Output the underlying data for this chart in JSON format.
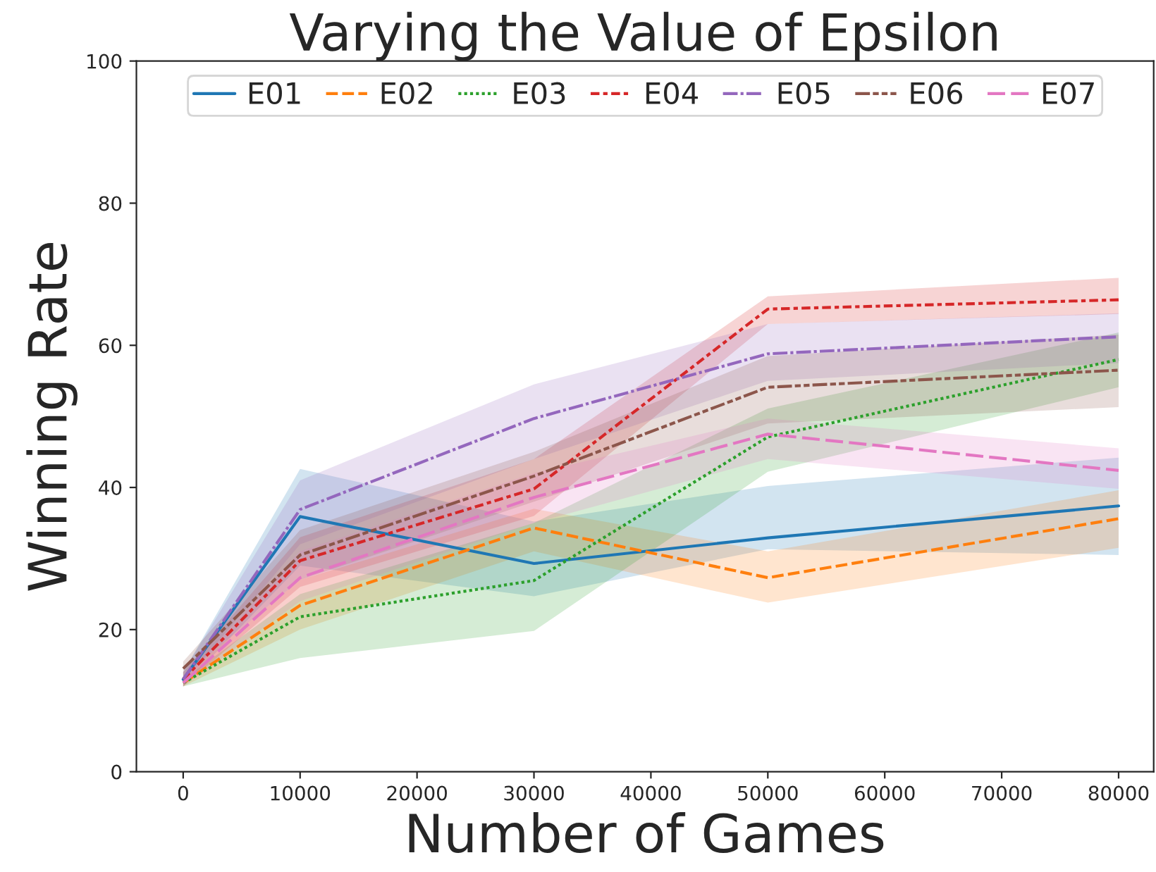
{
  "chart_data": {
    "type": "line",
    "title": "Varying the Value of Epsilon",
    "xlabel": "Number of Games",
    "ylabel": "Winning Rate",
    "x": [
      0,
      10000,
      30000,
      50000,
      80000
    ],
    "xlim": [
      -4000,
      83000
    ],
    "xticks": [
      0,
      10000,
      20000,
      30000,
      40000,
      50000,
      60000,
      70000,
      80000
    ],
    "ylim": [
      0,
      100
    ],
    "yticks": [
      0,
      20,
      40,
      60,
      80,
      100
    ],
    "grid": false,
    "legend": "top",
    "marker": "none",
    "series": [
      {
        "name": "E01",
        "color": "#1f77b4",
        "line_style": "solid",
        "values": [
          13,
          35.9,
          29.3,
          32.9,
          37.4
        ],
        "lower": [
          12,
          29,
          24.7,
          31.3,
          30.5
        ],
        "upper": [
          14,
          42.6,
          35.2,
          40.2,
          44.2
        ]
      },
      {
        "name": "E02",
        "color": "#ff7f0e",
        "line_style": "dashed",
        "values": [
          12.5,
          23.4,
          34.3,
          27.3,
          35.6
        ],
        "lower": [
          12,
          20,
          31,
          23.8,
          31.5
        ],
        "upper": [
          13.5,
          27,
          37,
          31,
          39.6
        ]
      },
      {
        "name": "E03",
        "color": "#2ca02c",
        "line_style": "dotted",
        "values": [
          12.5,
          21.8,
          26.9,
          47.1,
          58.0
        ],
        "lower": [
          12,
          16,
          19.8,
          42.2,
          54.1
        ],
        "upper": [
          13,
          25,
          35,
          51.1,
          61.8
        ]
      },
      {
        "name": "E04",
        "color": "#d62728",
        "line_style": "dashdot",
        "values": [
          13,
          29.7,
          39.8,
          65.1,
          66.4
        ],
        "lower": [
          12,
          26,
          36,
          63,
          64.4
        ],
        "upper": [
          14,
          33,
          44,
          66.9,
          69.5
        ]
      },
      {
        "name": "E05",
        "color": "#9467bd",
        "line_style": "longdashdot",
        "values": [
          13,
          36.9,
          49.7,
          58.8,
          61.2
        ],
        "lower": [
          12.5,
          32,
          44,
          55,
          57.5
        ],
        "upper": [
          14,
          41,
          54.5,
          63,
          64.5
        ]
      },
      {
        "name": "E06",
        "color": "#8c564b",
        "line_style": "dashdotdot",
        "values": [
          14.5,
          30.5,
          41.6,
          54.1,
          56.5
        ],
        "lower": [
          13.5,
          27,
          38,
          49,
          51.3
        ],
        "upper": [
          15.5,
          34,
          45,
          58.5,
          61.5
        ]
      },
      {
        "name": "E07",
        "color": "#e377c2",
        "line_style": "longdash",
        "values": [
          12.5,
          27.3,
          38.6,
          47.5,
          42.4
        ],
        "lower": [
          12,
          24,
          35,
          44,
          39.8
        ],
        "upper": [
          13,
          31,
          42,
          49.7,
          45.5
        ]
      }
    ]
  }
}
